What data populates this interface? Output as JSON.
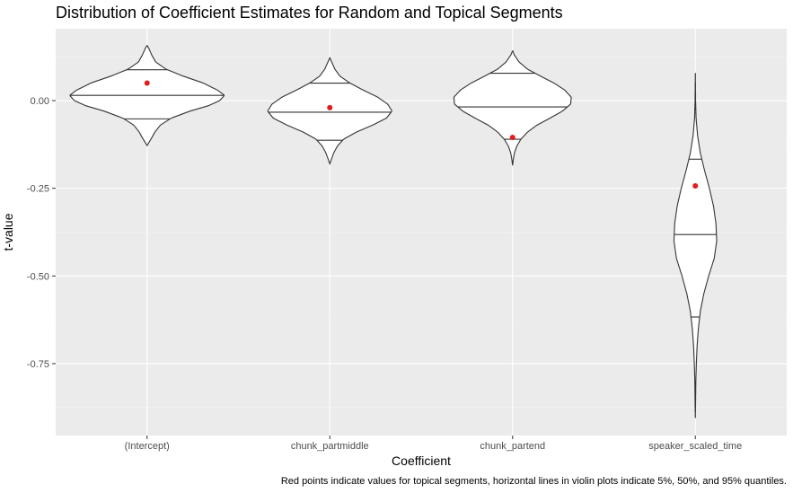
{
  "chart_data": {
    "type": "violin",
    "title": "Distribution of Coefficient Estimates for Random and Topical Segments",
    "xlabel": "Coefficient",
    "ylabel": "t-value",
    "caption": "Red points indicate values for topical segments, horizontal lines in violin plots indicate 5%, 50%, and 95% quantiles.",
    "ylim": [
      -0.955,
      0.205
    ],
    "yticks": [
      0.0,
      -0.25,
      -0.5,
      -0.75
    ],
    "ytick_labels": [
      "0.00",
      "-0.25",
      "-0.50",
      "-0.75"
    ],
    "categories": [
      "(Intercept)",
      "chunk_partmiddle",
      "chunk_partend",
      "speaker_scaled_time"
    ],
    "grid": true,
    "panel_background": "#ebebeb",
    "point_color": "#e41a1c",
    "violins": [
      {
        "category": "(Intercept)",
        "topical_point": 0.05,
        "quantiles": {
          "q05": -0.052,
          "q50": 0.015,
          "q95": 0.088
        },
        "profile": [
          [
            0.157,
            0
          ],
          [
            0.15,
            0.02
          ],
          [
            0.13,
            0.06
          ],
          [
            0.11,
            0.11
          ],
          [
            0.09,
            0.24
          ],
          [
            0.07,
            0.46
          ],
          [
            0.05,
            0.72
          ],
          [
            0.03,
            0.9
          ],
          [
            0.015,
            0.99
          ],
          [
            0.0,
            0.93
          ],
          [
            -0.015,
            0.78
          ],
          [
            -0.03,
            0.55
          ],
          [
            -0.05,
            0.31
          ],
          [
            -0.07,
            0.17
          ],
          [
            -0.09,
            0.1
          ],
          [
            -0.11,
            0.05
          ],
          [
            -0.128,
            0
          ]
        ]
      },
      {
        "category": "chunk_partmiddle",
        "topical_point": -0.02,
        "quantiles": {
          "q05": -0.113,
          "q50": -0.033,
          "q95": 0.05
        },
        "profile": [
          [
            0.122,
            0
          ],
          [
            0.11,
            0.03
          ],
          [
            0.09,
            0.08
          ],
          [
            0.07,
            0.16
          ],
          [
            0.05,
            0.32
          ],
          [
            0.03,
            0.53
          ],
          [
            0.01,
            0.76
          ],
          [
            -0.01,
            0.92
          ],
          [
            -0.03,
            0.99
          ],
          [
            -0.05,
            0.9
          ],
          [
            -0.07,
            0.68
          ],
          [
            -0.09,
            0.42
          ],
          [
            -0.11,
            0.22
          ],
          [
            -0.13,
            0.12
          ],
          [
            -0.15,
            0.06
          ],
          [
            -0.17,
            0.02
          ],
          [
            -0.18,
            0
          ]
        ]
      },
      {
        "category": "chunk_partend",
        "topical_point": -0.105,
        "quantiles": {
          "q05": -0.11,
          "q50": -0.018,
          "q95": 0.078
        },
        "profile": [
          [
            0.142,
            0
          ],
          [
            0.13,
            0.03
          ],
          [
            0.11,
            0.11
          ],
          [
            0.09,
            0.25
          ],
          [
            0.07,
            0.47
          ],
          [
            0.05,
            0.7
          ],
          [
            0.03,
            0.88
          ],
          [
            0.01,
            0.99
          ],
          [
            -0.01,
            0.98
          ],
          [
            -0.03,
            0.84
          ],
          [
            -0.05,
            0.63
          ],
          [
            -0.07,
            0.41
          ],
          [
            -0.09,
            0.25
          ],
          [
            -0.11,
            0.14
          ],
          [
            -0.13,
            0.07
          ],
          [
            -0.15,
            0.03
          ],
          [
            -0.17,
            0.01
          ],
          [
            -0.185,
            0
          ]
        ]
      },
      {
        "category": "speaker_scaled_time",
        "topical_point": -0.243,
        "quantiles": {
          "q05": -0.617,
          "q50": -0.382,
          "q95": -0.167
        },
        "profile": [
          [
            0.078,
            0
          ],
          [
            0.0,
            0.01
          ],
          [
            -0.05,
            0.03
          ],
          [
            -0.1,
            0.09
          ],
          [
            -0.15,
            0.2
          ],
          [
            -0.2,
            0.37
          ],
          [
            -0.25,
            0.56
          ],
          [
            -0.3,
            0.72
          ],
          [
            -0.35,
            0.82
          ],
          [
            -0.4,
            0.85
          ],
          [
            -0.45,
            0.75
          ],
          [
            -0.5,
            0.53
          ],
          [
            -0.55,
            0.34
          ],
          [
            -0.6,
            0.2
          ],
          [
            -0.65,
            0.12
          ],
          [
            -0.7,
            0.07
          ],
          [
            -0.75,
            0.04
          ],
          [
            -0.8,
            0.02
          ],
          [
            -0.86,
            0.01
          ],
          [
            -0.905,
            0
          ]
        ]
      }
    ]
  }
}
